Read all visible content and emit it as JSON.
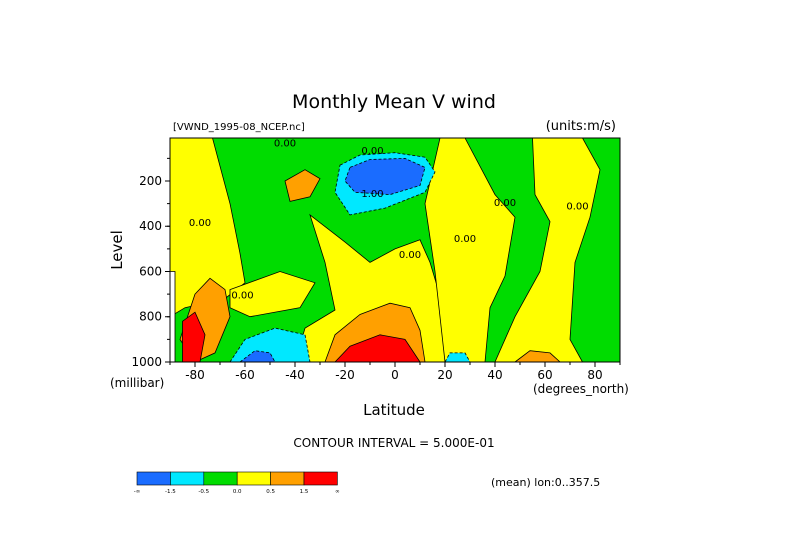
{
  "chart_data": {
    "type": "heatmap",
    "title": "Monthly Mean V wind",
    "subtitle_left": "[VWND_1995-08_NCEP.nc]",
    "subtitle_right": "(units:m/s)",
    "xlabel": "Latitude",
    "xunits": "(degrees_north)",
    "ylabel": "Level",
    "yunits": "(millibar)",
    "xlim": [
      -90,
      90
    ],
    "ylim": [
      1000,
      10
    ],
    "x_ticks": [
      -80,
      -60,
      -40,
      -20,
      0,
      20,
      40,
      60,
      80
    ],
    "y_ticks": [
      200,
      400,
      600,
      800,
      1000
    ],
    "contour_interval_text": "CONTOUR INTERVAL = 5.000E-01",
    "mean_text": "(mean) lon:0..357.5",
    "contour_labels": [
      "0.00",
      "0.00",
      "1.00",
      "0.00",
      "0.00",
      "0.00",
      "0.00",
      "0.00",
      "0.00"
    ],
    "colorbar": {
      "colors": [
        "#1a6cff",
        "#00e8ff",
        "#00dc00",
        "#ffff00",
        "#ffa000",
        "#ff0000"
      ],
      "labels": [
        "-∞",
        "-1.5",
        "-0.5",
        "0.0",
        "0.5",
        "1.5",
        "∞"
      ]
    },
    "regions": [
      {
        "name": "upper-southern-yellow",
        "value": 0.25,
        "color": "#ffff00",
        "pts": [
          [
            -90,
            10
          ],
          [
            -73,
            10
          ],
          [
            -66,
            300
          ],
          [
            -62,
            520
          ],
          [
            -60,
            650
          ],
          [
            -68,
            720
          ],
          [
            -84,
            760
          ],
          [
            -90,
            800
          ]
        ]
      },
      {
        "name": "yellow-south-mid",
        "value": 0.25,
        "color": "#ffff00",
        "pts": [
          [
            -66,
            680
          ],
          [
            -46,
            600
          ],
          [
            -32,
            650
          ],
          [
            -38,
            760
          ],
          [
            -58,
            800
          ],
          [
            -66,
            760
          ]
        ]
      },
      {
        "name": "yellow-around-equator",
        "value": 0.25,
        "color": "#ffff00",
        "pts": [
          [
            -34,
            350
          ],
          [
            -20,
            470
          ],
          [
            -10,
            560
          ],
          [
            0,
            500
          ],
          [
            10,
            460
          ],
          [
            14,
            560
          ],
          [
            20,
            780
          ],
          [
            28,
            1000
          ],
          [
            -40,
            1000
          ],
          [
            -36,
            850
          ],
          [
            -24,
            770
          ],
          [
            -28,
            560
          ]
        ]
      },
      {
        "name": "yellow-mid-north",
        "value": 0.25,
        "color": "#ffff00",
        "pts": [
          [
            18,
            10
          ],
          [
            28,
            10
          ],
          [
            40,
            260
          ],
          [
            48,
            360
          ],
          [
            44,
            620
          ],
          [
            38,
            760
          ],
          [
            36,
            1000
          ],
          [
            20,
            1000
          ],
          [
            16,
            600
          ],
          [
            12,
            300
          ]
        ]
      },
      {
        "name": "yellow-north-broad",
        "value": 0.25,
        "color": "#ffff00",
        "pts": [
          [
            55,
            10
          ],
          [
            75,
            10
          ],
          [
            82,
            150
          ],
          [
            78,
            360
          ],
          [
            72,
            560
          ],
          [
            70,
            900
          ],
          [
            75,
            1000
          ],
          [
            40,
            1000
          ],
          [
            48,
            800
          ],
          [
            58,
            600
          ],
          [
            62,
            380
          ],
          [
            56,
            260
          ]
        ]
      },
      {
        "name": "orange-south-upper",
        "value": 1.0,
        "color": "#ffa000",
        "pts": [
          [
            -44,
            200
          ],
          [
            -36,
            150
          ],
          [
            -30,
            190
          ],
          [
            -34,
            270
          ],
          [
            -42,
            290
          ]
        ]
      },
      {
        "name": "orange-south-surface",
        "value": 1.0,
        "color": "#ffa000",
        "pts": [
          [
            -80,
            700
          ],
          [
            -74,
            630
          ],
          [
            -68,
            680
          ],
          [
            -66,
            800
          ],
          [
            -72,
            960
          ],
          [
            -80,
            1000
          ],
          [
            -86,
            900
          ]
        ]
      },
      {
        "name": "orange-equator-surface",
        "value": 1.0,
        "color": "#ffa000",
        "pts": [
          [
            -28,
            1000
          ],
          [
            -24,
            880
          ],
          [
            -14,
            790
          ],
          [
            -2,
            740
          ],
          [
            6,
            760
          ],
          [
            10,
            860
          ],
          [
            12,
            1000
          ]
        ]
      },
      {
        "name": "orange-north-surface",
        "value": 1.0,
        "color": "#ffa000",
        "pts": [
          [
            48,
            1000
          ],
          [
            54,
            950
          ],
          [
            62,
            960
          ],
          [
            66,
            1000
          ]
        ]
      },
      {
        "name": "red-equator-surface",
        "value": 2.0,
        "color": "#ff0000",
        "pts": [
          [
            -24,
            1000
          ],
          [
            -18,
            930
          ],
          [
            -6,
            880
          ],
          [
            4,
            900
          ],
          [
            10,
            1000
          ]
        ]
      },
      {
        "name": "red-south-surface",
        "value": 2.0,
        "color": "#ff0000",
        "pts": [
          [
            -85,
            820
          ],
          [
            -80,
            780
          ],
          [
            -76,
            880
          ],
          [
            -78,
            1000
          ],
          [
            -85,
            1000
          ]
        ]
      },
      {
        "name": "cyan-upper-jet",
        "value": -1.0,
        "color": "#00e8ff",
        "pts": [
          [
            -22,
            130
          ],
          [
            -14,
            85
          ],
          [
            0,
            75
          ],
          [
            12,
            95
          ],
          [
            16,
            160
          ],
          [
            12,
            250
          ],
          [
            -4,
            320
          ],
          [
            -18,
            350
          ],
          [
            -24,
            250
          ]
        ]
      },
      {
        "name": "cyan-south-surface",
        "value": -1.0,
        "color": "#00e8ff",
        "pts": [
          [
            -66,
            1000
          ],
          [
            -60,
            900
          ],
          [
            -48,
            850
          ],
          [
            -36,
            880
          ],
          [
            -34,
            1000
          ]
        ]
      },
      {
        "name": "cyan-north-surface",
        "value": -1.0,
        "color": "#00e8ff",
        "pts": [
          [
            20,
            1000
          ],
          [
            22,
            960
          ],
          [
            28,
            960
          ],
          [
            30,
            1000
          ]
        ]
      },
      {
        "name": "blue-upper-jet",
        "value": -2.0,
        "color": "#1a6cff",
        "pts": [
          [
            -18,
            140
          ],
          [
            -10,
            105
          ],
          [
            4,
            100
          ],
          [
            12,
            140
          ],
          [
            10,
            220
          ],
          [
            -2,
            260
          ],
          [
            -16,
            250
          ],
          [
            -20,
            200
          ]
        ]
      },
      {
        "name": "blue-south-surface",
        "value": -2.0,
        "color": "#1a6cff",
        "pts": [
          [
            -62,
            1000
          ],
          [
            -56,
            950
          ],
          [
            -50,
            960
          ],
          [
            -48,
            1000
          ]
        ]
      },
      {
        "name": "white-missing",
        "value": null,
        "color": "#ffffff",
        "pts": [
          [
            -90,
            600
          ],
          [
            -88,
            600
          ],
          [
            -88,
            1000
          ],
          [
            -90,
            1000
          ]
        ]
      }
    ]
  }
}
